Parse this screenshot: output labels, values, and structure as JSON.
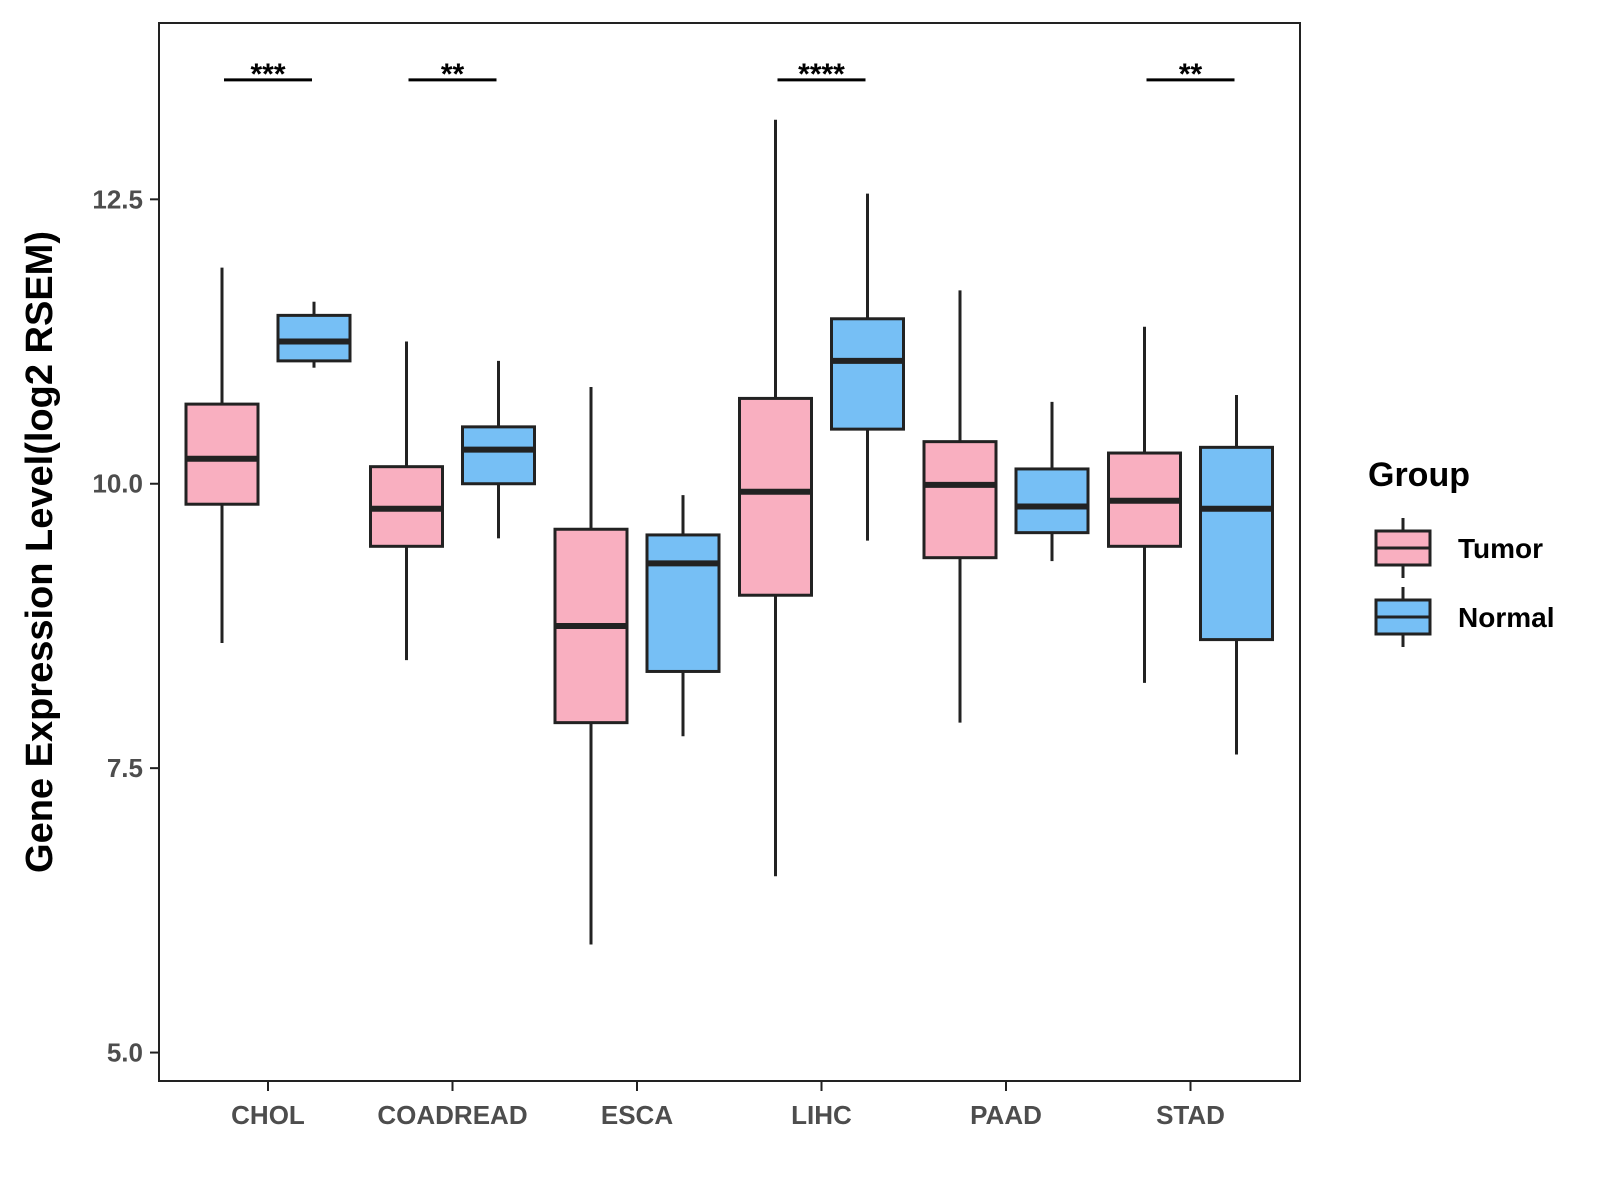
{
  "chart_data": {
    "type": "boxplot",
    "title": "",
    "xlabel": "",
    "ylabel": "Gene Expression Level(log2 RSEM)",
    "ylim": [
      4.75,
      14.05
    ],
    "yticks": [
      5.0,
      7.5,
      10.0,
      12.5
    ],
    "ytick_labels": [
      "5.0",
      "7.5",
      "10.0",
      "12.5"
    ],
    "categories": [
      "CHOL",
      "COADREAD",
      "ESCA",
      "LIHC",
      "PAAD",
      "STAD"
    ],
    "legend": {
      "title": "Group",
      "position": "right",
      "entries": [
        {
          "name": "Tumor",
          "color": "#f9afc0"
        },
        {
          "name": "Normal",
          "color": "#76bff5"
        }
      ]
    },
    "series": [
      {
        "name": "Tumor",
        "color": "#f9afc0",
        "boxes": [
          {
            "category": "CHOL",
            "min": 8.6,
            "q1": 9.82,
            "median": 10.22,
            "q3": 10.7,
            "max": 11.9
          },
          {
            "category": "COADREAD",
            "min": 8.45,
            "q1": 9.45,
            "median": 9.78,
            "q3": 10.15,
            "max": 11.25
          },
          {
            "category": "ESCA",
            "min": 5.95,
            "q1": 7.9,
            "median": 8.75,
            "q3": 9.6,
            "max": 10.85
          },
          {
            "category": "LIHC",
            "min": 6.55,
            "q1": 9.02,
            "median": 9.93,
            "q3": 10.75,
            "max": 13.2
          },
          {
            "category": "PAAD",
            "min": 7.9,
            "q1": 9.35,
            "median": 9.99,
            "q3": 10.37,
            "max": 11.7
          },
          {
            "category": "STAD",
            "min": 8.25,
            "q1": 9.45,
            "median": 9.85,
            "q3": 10.27,
            "max": 11.38
          }
        ]
      },
      {
        "name": "Normal",
        "color": "#76bff5",
        "boxes": [
          {
            "category": "CHOL",
            "min": 11.02,
            "q1": 11.08,
            "median": 11.25,
            "q3": 11.48,
            "max": 11.6
          },
          {
            "category": "COADREAD",
            "min": 9.52,
            "q1": 10.0,
            "median": 10.3,
            "q3": 10.5,
            "max": 11.08
          },
          {
            "category": "ESCA",
            "min": 7.78,
            "q1": 8.35,
            "median": 9.3,
            "q3": 9.55,
            "max": 9.9
          },
          {
            "category": "LIHC",
            "min": 9.5,
            "q1": 10.48,
            "median": 11.08,
            "q3": 11.45,
            "max": 12.55
          },
          {
            "category": "PAAD",
            "min": 9.32,
            "q1": 9.57,
            "median": 9.8,
            "q3": 10.13,
            "max": 10.72
          },
          {
            "category": "STAD",
            "min": 7.62,
            "q1": 8.63,
            "median": 9.78,
            "q3": 10.32,
            "max": 10.78
          }
        ]
      }
    ],
    "annotations": [
      {
        "category": "CHOL",
        "label": "***"
      },
      {
        "category": "COADREAD",
        "label": "**"
      },
      {
        "category": "LIHC",
        "label": "****"
      },
      {
        "category": "STAD",
        "label": "**"
      }
    ],
    "annotation_level": 13.55
  }
}
